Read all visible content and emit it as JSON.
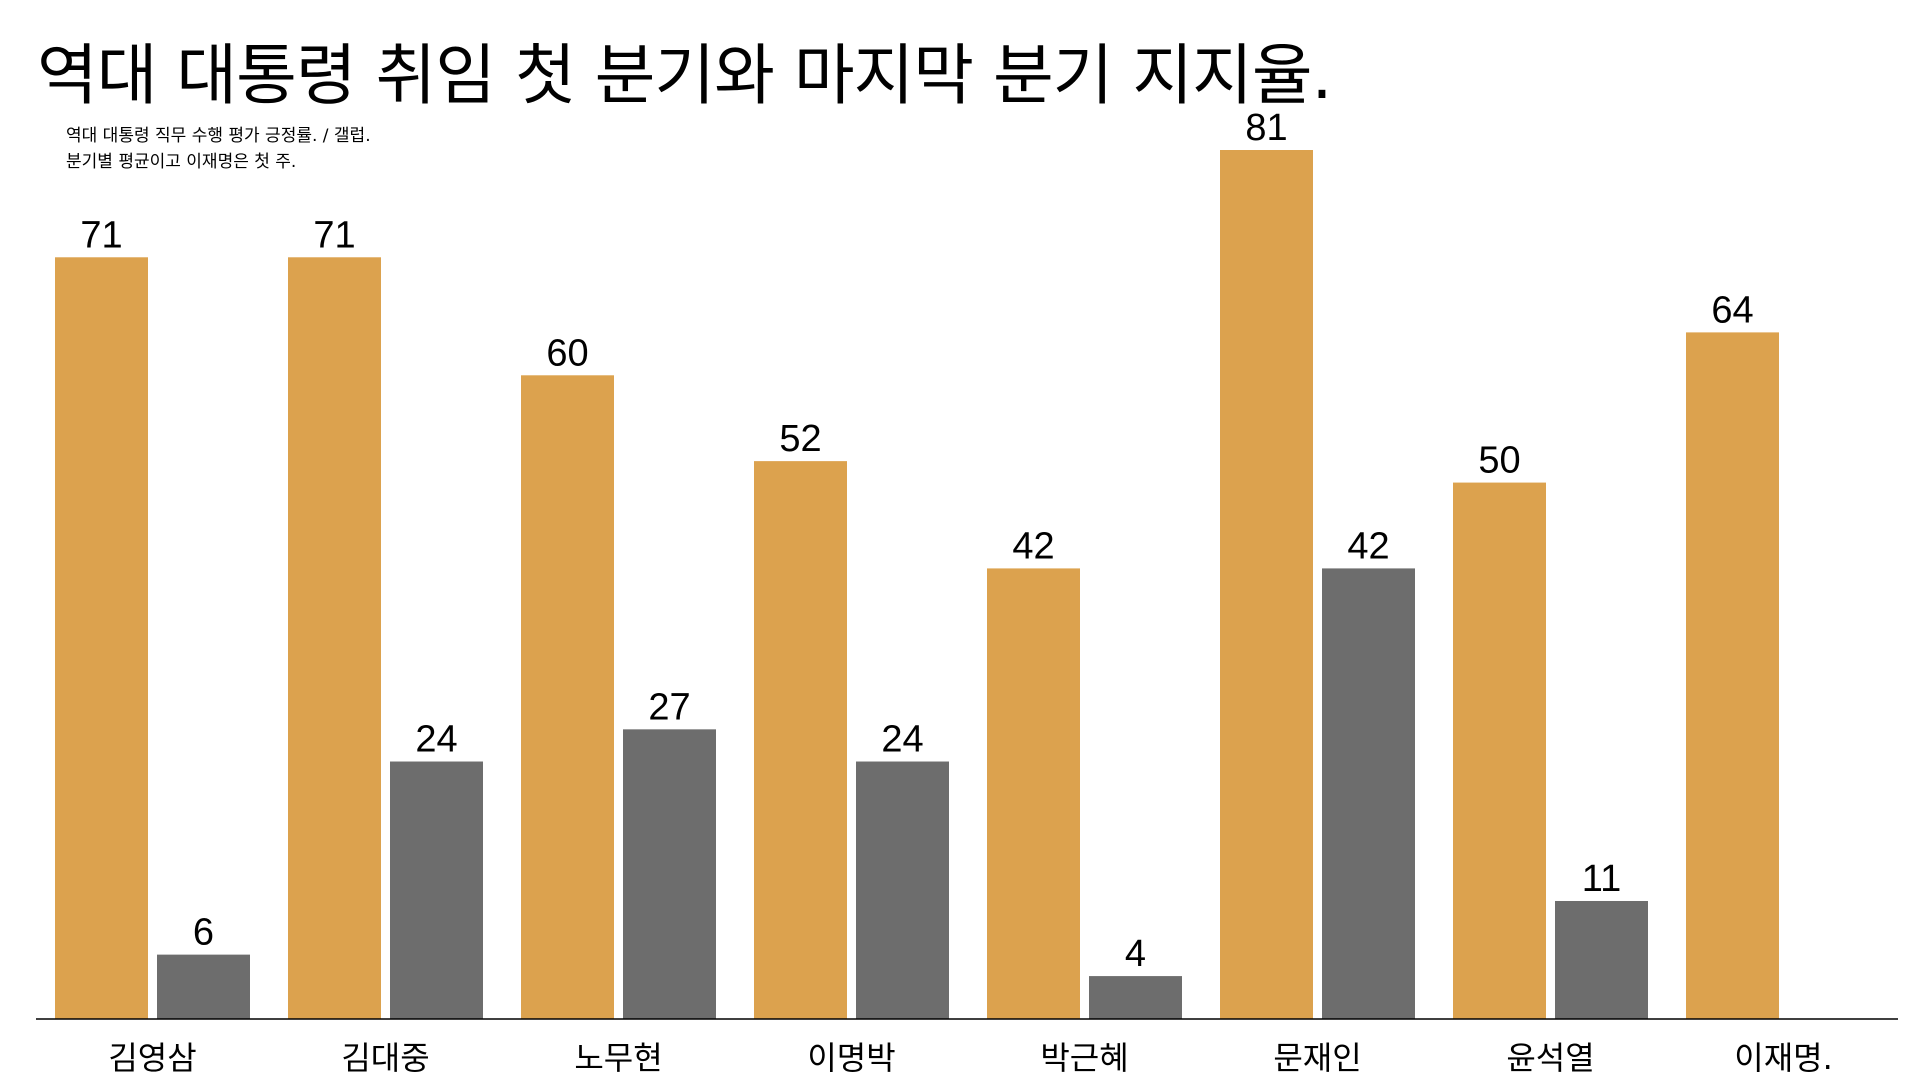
{
  "title": "역대 대통령 취임 첫 분기와 마지막 분기 지지율.",
  "subtitle_lines": [
    "역대 대통령 직무 수행 평가 긍정률. / 갤럽.",
    "분기별 평균이고 이재명은 첫 주."
  ],
  "chart_data": {
    "type": "bar",
    "categories": [
      "김영삼",
      "김대중",
      "노무현",
      "이명박",
      "박근혜",
      "문재인",
      "윤석열",
      "이재명."
    ],
    "series": [
      {
        "values": [
          71,
          71,
          60,
          52,
          42,
          81,
          50,
          64
        ]
      },
      {
        "values": [
          6,
          24,
          27,
          24,
          4,
          42,
          11,
          null
        ]
      }
    ],
    "ylim": [
      0,
      81
    ],
    "colors": [
      "#DCA24E",
      "#6D6D6D"
    ],
    "grid": false,
    "data_labels": true
  }
}
